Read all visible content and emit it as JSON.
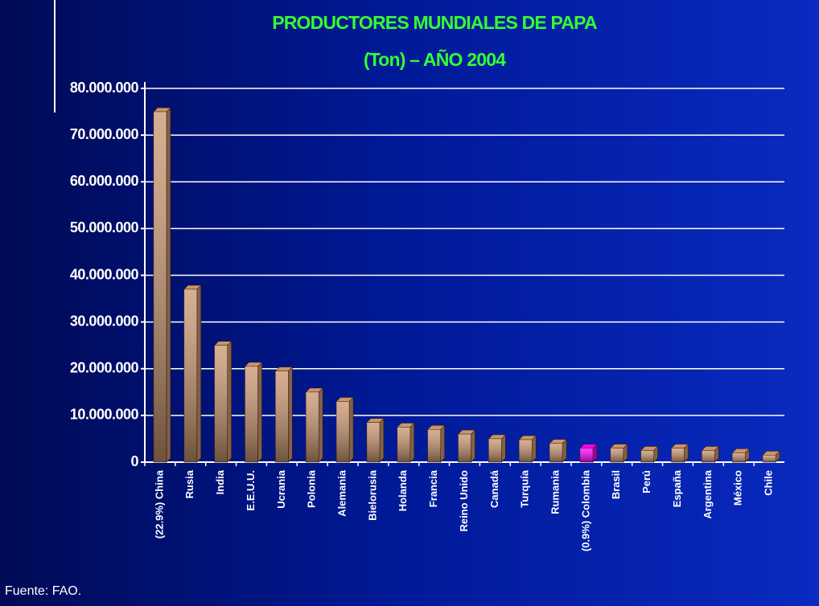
{
  "chart_data": {
    "type": "bar",
    "title": "PRODUCTORES MUNDIALES DE PAPA",
    "subtitle": "(Ton) – AÑO 2004",
    "source": "Fuente: FAO.",
    "categories": [
      "(22.9%)  China",
      "Rusia",
      "India",
      "E.E.U.U.",
      "Ucrania",
      "Polonia",
      "Alemania",
      "Bielorusia",
      "Holanda",
      "Francia",
      "Reino Unido",
      "Canadá",
      "Turquía",
      "Rumania",
      "(0.9%)  Colombia",
      "Brasil",
      "Perú",
      "España",
      "Argentina",
      "México",
      "Chile"
    ],
    "values": [
      75000000,
      37000000,
      25000000,
      20500000,
      19500000,
      15000000,
      13000000,
      8500000,
      7500000,
      7000000,
      6000000,
      5000000,
      4800000,
      4000000,
      3000000,
      3000000,
      2500000,
      3000000,
      2500000,
      2000000,
      1500000
    ],
    "colors": [
      "#c9956e",
      "#c9956e",
      "#c9956e",
      "#c9956e",
      "#c9956e",
      "#c9956e",
      "#c9956e",
      "#c9956e",
      "#c9956e",
      "#c9956e",
      "#c9956e",
      "#c9956e",
      "#c9956e",
      "#c9956e",
      "#ff00ff",
      "#c9956e",
      "#c9956e",
      "#c9956e",
      "#c9956e",
      "#c9956e",
      "#c9956e"
    ],
    "ylim": [
      0,
      80000000
    ],
    "yticks": [
      0,
      {
        "value": 10000000,
        "label": "10.000.000"
      },
      {
        "value": 20000000,
        "label": "20.000.000"
      },
      {
        "value": 30000000,
        "label": "30.000.000"
      },
      {
        "value": 40000000,
        "label": "40.000.000"
      },
      {
        "value": 50000000,
        "label": "50.000.000"
      },
      {
        "value": 60000000,
        "label": "60.000.000"
      },
      {
        "value": 70000000,
        "label": "70.000.000"
      },
      {
        "value": 80000000,
        "label": "80.000.000"
      }
    ],
    "grid": true
  }
}
